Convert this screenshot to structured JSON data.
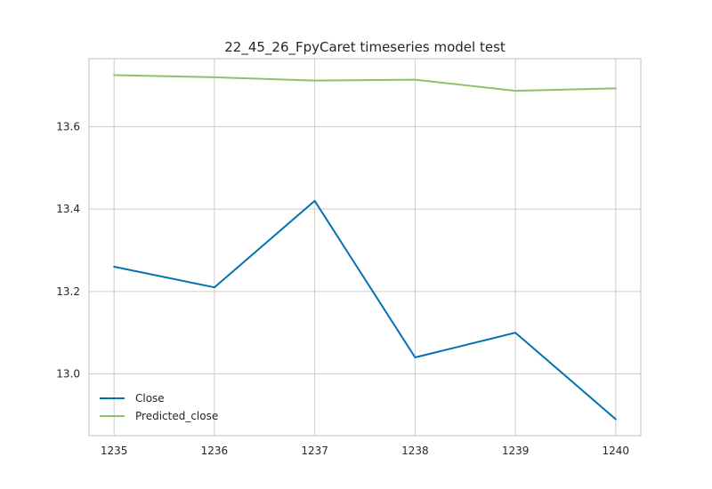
{
  "chart_data": {
    "type": "line",
    "title": "22_45_26_FpyCaret timeseries model test",
    "xlabel": "",
    "ylabel": "",
    "x": [
      1235,
      1236,
      1237,
      1238,
      1239,
      1240
    ],
    "x_tick_labels": [
      "1235",
      "1236",
      "1237",
      "1238",
      "1239",
      "1240"
    ],
    "y_ticks": [
      13.0,
      13.2,
      13.4,
      13.6
    ],
    "y_tick_labels": [
      "13.0",
      "13.2",
      "13.4",
      "13.6"
    ],
    "xlim": [
      1234.75,
      1240.25
    ],
    "ylim": [
      12.85,
      13.765
    ],
    "grid": true,
    "legend_position": "lower-left",
    "series": [
      {
        "name": "Close",
        "color": "#0072b2",
        "values": [
          13.26,
          13.21,
          13.42,
          13.04,
          13.1,
          12.89
        ]
      },
      {
        "name": "Predicted_close",
        "color": "#8fc170",
        "values": [
          13.725,
          13.72,
          13.712,
          13.714,
          13.687,
          13.693
        ]
      }
    ]
  }
}
